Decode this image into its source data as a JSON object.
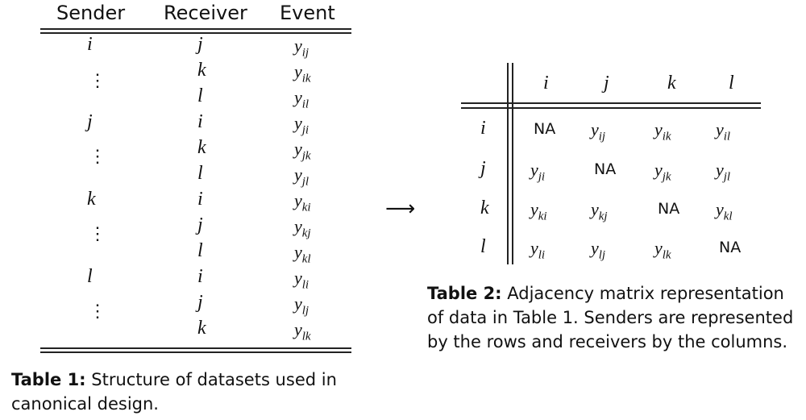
{
  "table1": {
    "headers": [
      "Sender",
      "Receiver",
      "Event"
    ],
    "rows": [
      {
        "sender": "i",
        "receiver": "j",
        "event": "y",
        "sub": "ij"
      },
      {
        "sender": "",
        "receiver": "k",
        "event": "y",
        "sub": "ik"
      },
      {
        "sender": "",
        "receiver": "l",
        "event": "y",
        "sub": "il"
      },
      {
        "sender": "j",
        "receiver": "i",
        "event": "y",
        "sub": "ji"
      },
      {
        "sender": "",
        "receiver": "k",
        "event": "y",
        "sub": "jk"
      },
      {
        "sender": "",
        "receiver": "l",
        "event": "y",
        "sub": "jl"
      },
      {
        "sender": "k",
        "receiver": "i",
        "event": "y",
        "sub": "ki"
      },
      {
        "sender": "",
        "receiver": "j",
        "event": "y",
        "sub": "kj"
      },
      {
        "sender": "",
        "receiver": "l",
        "event": "y",
        "sub": "kl"
      },
      {
        "sender": "l",
        "receiver": "i",
        "event": "y",
        "sub": "li"
      },
      {
        "sender": "",
        "receiver": "j",
        "event": "y",
        "sub": "lj"
      },
      {
        "sender": "",
        "receiver": "k",
        "event": "y",
        "sub": "lk"
      }
    ],
    "vdots": "⋮",
    "caption_label": "Table 1:",
    "caption_line1": " Structure of datasets used in",
    "caption_line2": "canonical design."
  },
  "arrow": "⟶",
  "table2": {
    "col_headers": [
      "i",
      "j",
      "k",
      "l"
    ],
    "row_headers": [
      "i",
      "j",
      "k",
      "l"
    ],
    "cells": [
      [
        {
          "na": "NA"
        },
        {
          "sub": "ij"
        },
        {
          "sub": "ik"
        },
        {
          "sub": "il"
        }
      ],
      [
        {
          "sub": "ji"
        },
        {
          "na": "NA"
        },
        {
          "sub": "jk"
        },
        {
          "sub": "jl"
        }
      ],
      [
        {
          "sub": "ki"
        },
        {
          "sub": "kj"
        },
        {
          "na": "NA"
        },
        {
          "sub": "kl"
        }
      ],
      [
        {
          "sub": "li"
        },
        {
          "sub": "lj"
        },
        {
          "sub": "lk"
        },
        {
          "na": "NA"
        }
      ]
    ],
    "y": "y",
    "caption_label": "Table 2:",
    "caption_line1": " Adjacency matrix representation",
    "caption_line2": "of data in Table 1. Senders are represented",
    "caption_line3": "by the rows and receivers by the columns."
  }
}
